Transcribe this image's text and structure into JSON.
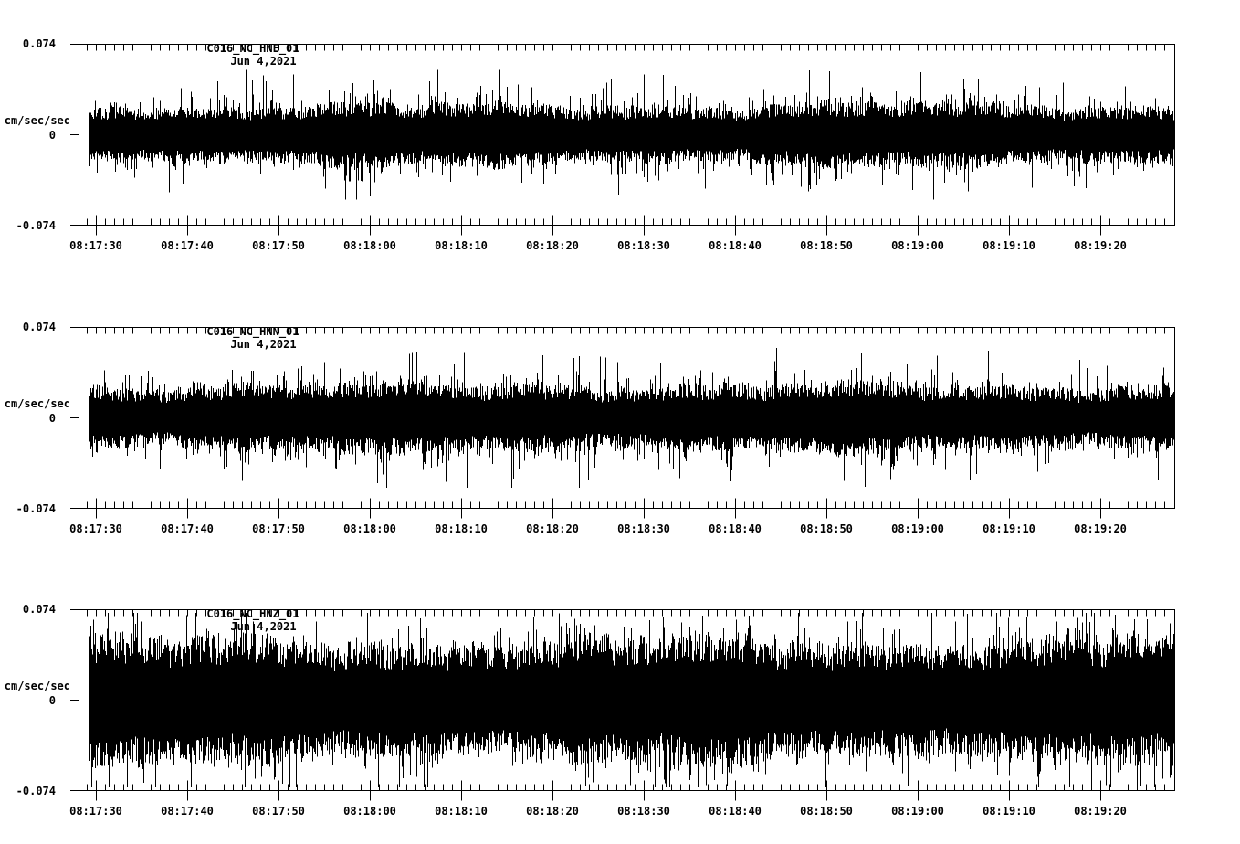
{
  "chart_data": {
    "type": "line",
    "chart_kind": "seismogram-3-component-waveform",
    "date_label": "Jun 4,2021",
    "ylabel": "cm/sec/sec",
    "ylim": [
      -0.074,
      0.074
    ],
    "y_tick_labels": [
      "0.074",
      "0",
      "-0.074"
    ],
    "x_start_time": "08:17:28",
    "x_end_time": "08:19:28",
    "x_major_tick_interval_sec": 10,
    "x_minor_tick_interval_sec": 1,
    "x_major_ticks": [
      "08:17:30",
      "08:17:40",
      "08:17:50",
      "08:18:00",
      "08:18:10",
      "08:18:20",
      "08:18:30",
      "08:18:40",
      "08:18:50",
      "08:19:00",
      "08:19:10",
      "08:19:20"
    ],
    "grid": false,
    "line_color": "#000000",
    "background_color": "#ffffff",
    "panels": [
      {
        "title": "C016_NC_HNE_01",
        "noise_core_amp": 0.019,
        "spike_prob": 0.3,
        "spike_tail": 0.0075,
        "peak_amp": 0.053,
        "env1": 0.1,
        "env2": 0.07,
        "seed": 11
      },
      {
        "title": "C016_NC_HNN_01",
        "noise_core_amp": 0.021,
        "spike_prob": 0.32,
        "spike_tail": 0.008,
        "peak_amp": 0.057,
        "env1": 0.09,
        "env2": 0.07,
        "seed": 22
      },
      {
        "title": "C016_NC_HNZ_01",
        "noise_core_amp": 0.038,
        "spike_prob": 0.5,
        "spike_tail": 0.0085,
        "peak_amp": 0.0715,
        "env1": 0.08,
        "env2": 0.05,
        "seed": 7
      }
    ]
  }
}
